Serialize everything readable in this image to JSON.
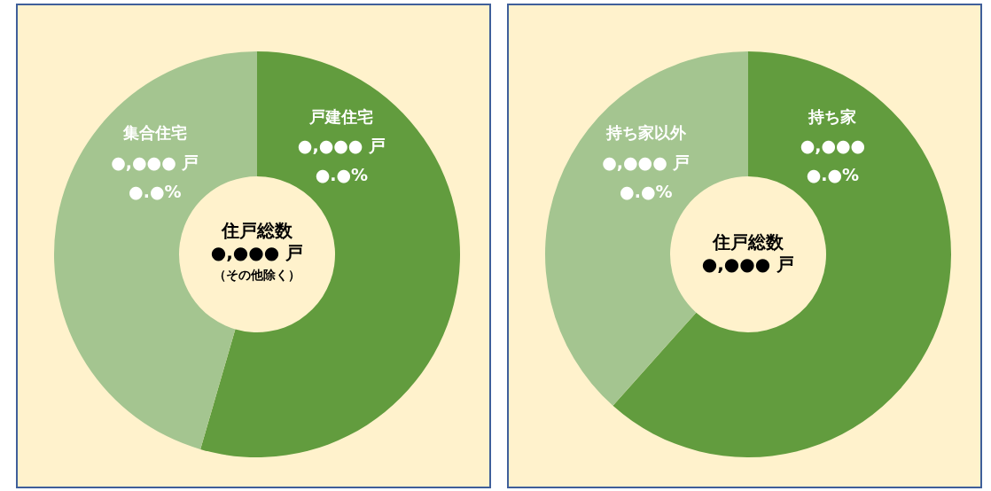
{
  "chart_data": [
    {
      "type": "donut",
      "categories": [
        "戸建住宅",
        "集合住宅"
      ],
      "values": [
        54.5,
        45.5
      ],
      "colors": [
        "#629c3e",
        "#a4c590"
      ],
      "value_labels": [
        "●,●●● 戸\n●.●%",
        "●,●●● 戸\n●.●%"
      ],
      "annotations": [
        "住戸総数",
        "●,●●● 戸",
        "（その他除く）"
      ]
    },
    {
      "type": "donut",
      "categories": [
        "持ち家",
        "持ち家以外"
      ],
      "values": [
        61.6,
        38.4
      ],
      "colors": [
        "#629c3e",
        "#a4c590"
      ],
      "value_labels": [
        "●,●●●\n●.●%",
        "●,●●● 戸\n●.●%"
      ],
      "annotations": [
        "住戸総数",
        "●,●●● 戸"
      ]
    }
  ]
}
